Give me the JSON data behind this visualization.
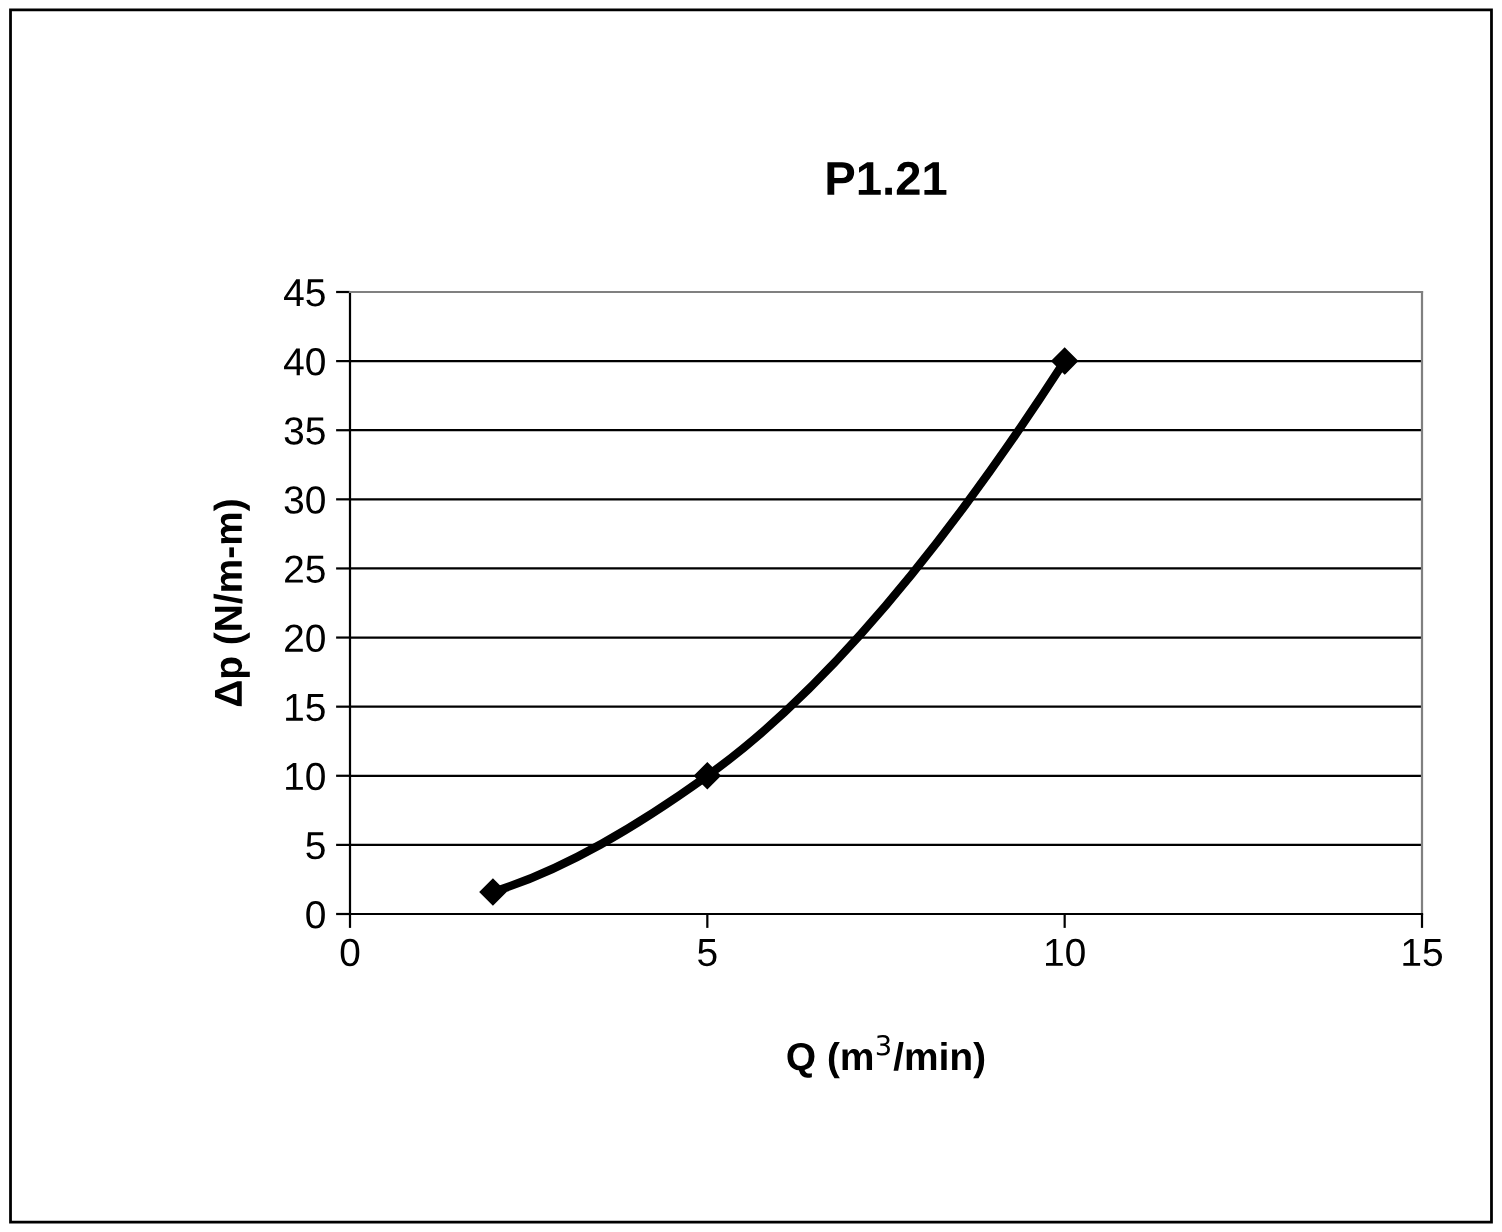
{
  "chart_data": {
    "type": "line",
    "title": "P1.21",
    "xlabel": "Q (m$^{3}$/min)",
    "ylabel": "Δp (N/m-m)",
    "x": [
      2,
      5,
      10
    ],
    "series": [
      {
        "color": "#000000",
        "values": [
          1.6,
          10,
          40
        ]
      }
    ],
    "xlim": [
      0,
      15
    ],
    "xticks": [
      0,
      5,
      10,
      15
    ],
    "ylim": [
      0,
      45
    ],
    "yticks": [
      0,
      5,
      10,
      15,
      20,
      25,
      30,
      35,
      40,
      45
    ],
    "grid": "y",
    "marker": "diamond",
    "line_style": "solid"
  }
}
